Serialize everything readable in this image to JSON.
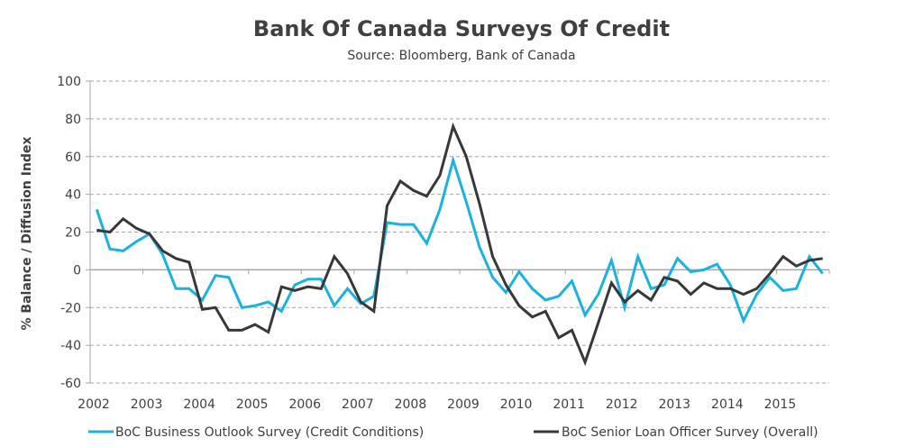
{
  "chart_data": {
    "type": "line",
    "title": "Bank Of Canada Surveys Of Credit",
    "subtitle": "Source: Bloomberg, Bank of Canada",
    "xlabel": "",
    "ylabel": "% Balance / Diffusion Index",
    "ylim": [
      -60,
      100
    ],
    "yticks": [
      "100",
      "80",
      "60",
      "40",
      "20",
      "0",
      "-20",
      "-40",
      "-60"
    ],
    "ytick_values": [
      100,
      80,
      60,
      40,
      20,
      0,
      -20,
      -40,
      -60
    ],
    "xticks": [
      "2002",
      "2003",
      "2004",
      "2005",
      "2006",
      "2007",
      "2008",
      "2009",
      "2010",
      "2011",
      "2012",
      "2013",
      "2014",
      "2015"
    ],
    "x_start": "2002 Q1",
    "x_frequency": "quarterly",
    "grid": true,
    "legend_position": "bottom",
    "series": [
      {
        "name": "BoC Business Outlook Survey (Credit Conditions)",
        "color": "#1ab2e0",
        "values": [
          32,
          11,
          10,
          15,
          19,
          8,
          -10,
          -10,
          -16,
          -3,
          -4,
          -20,
          -19,
          -17,
          -22,
          -8,
          -5,
          -5,
          -19,
          -10,
          -18,
          -14,
          25,
          24,
          24,
          14,
          32,
          58,
          36,
          12,
          -4,
          -12,
          -1,
          -10,
          -16,
          -14,
          -6,
          -24,
          -13,
          5,
          -20,
          7,
          -10,
          -8,
          6,
          -1,
          0,
          3,
          -8,
          -27,
          -13,
          -4,
          -11,
          -10,
          7,
          -2
        ]
      },
      {
        "name": "BoC Senior Loan Officer Survey (Overall)",
        "color": "#383838",
        "values": [
          21,
          20,
          27,
          22,
          19,
          10,
          6,
          4,
          -21,
          -20,
          -32,
          -32,
          -29,
          -33,
          -9,
          -11,
          -9,
          -10,
          7,
          -2,
          -17,
          -22,
          34,
          47,
          42,
          39,
          50,
          76,
          60,
          35,
          7,
          -8,
          -19,
          -25,
          -22,
          -36,
          -32,
          -49,
          -28,
          -7,
          -17,
          -11,
          -16,
          -4,
          -6,
          -13,
          -7,
          -10,
          -10,
          -13,
          -10,
          -2,
          7,
          2,
          5,
          6
        ]
      }
    ]
  }
}
